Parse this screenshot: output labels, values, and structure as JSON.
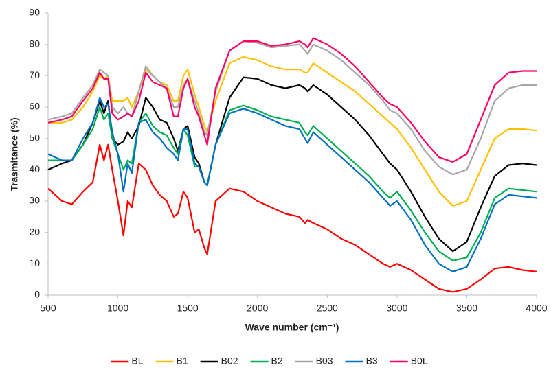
{
  "chart_data": {
    "type": "line",
    "x_label": "Wave number (cm⁻¹)",
    "y_label": "Trasmitance (%)",
    "x": [
      500,
      600,
      670,
      750,
      820,
      870,
      900,
      930,
      960,
      1000,
      1040,
      1070,
      1100,
      1150,
      1200,
      1250,
      1300,
      1350,
      1400,
      1430,
      1470,
      1500,
      1550,
      1580,
      1620,
      1640,
      1700,
      1800,
      1900,
      2000,
      2100,
      2200,
      2300,
      2340,
      2360,
      2400,
      2500,
      2600,
      2700,
      2800,
      2900,
      2950,
      3000,
      3100,
      3200,
      3300,
      3400,
      3500,
      3600,
      3700,
      3800,
      3900,
      4000
    ],
    "series": [
      {
        "name": "BL",
        "color": "#ff0000",
        "values": [
          34,
          30,
          29,
          33,
          36,
          48,
          43,
          48,
          40,
          30,
          19,
          30,
          28,
          42,
          40,
          35,
          32,
          30,
          25,
          26,
          33,
          31,
          20,
          21,
          15,
          13,
          30,
          34,
          33,
          30,
          28,
          26,
          25,
          23,
          24,
          23,
          21,
          18,
          16,
          13,
          10,
          9,
          10,
          8,
          5,
          2,
          1,
          2,
          5,
          8.5,
          9,
          8,
          7.5
        ]
      },
      {
        "name": "B1",
        "color": "#ffc000",
        "values": [
          55,
          55,
          56,
          60,
          65,
          70,
          69,
          70,
          62,
          62,
          62,
          63,
          60,
          65,
          72,
          70,
          68,
          67,
          62,
          62,
          70,
          72,
          64,
          60,
          54,
          52,
          62,
          74,
          76,
          75,
          73,
          72,
          72,
          71,
          71,
          74,
          71,
          68,
          65,
          61,
          57,
          55,
          53,
          47,
          40,
          33,
          28.5,
          30,
          40,
          50,
          53,
          53,
          52.5
        ]
      },
      {
        "name": "B02",
        "color": "#000000",
        "values": [
          40,
          42,
          43,
          48,
          55,
          62,
          58,
          62,
          50,
          48,
          49,
          52,
          50,
          54,
          63,
          60,
          56,
          55,
          50,
          46,
          53,
          54,
          44,
          42,
          36,
          35,
          48,
          63,
          69.5,
          69,
          67,
          66,
          67,
          66,
          65,
          67,
          64,
          60,
          56,
          51,
          45,
          42,
          40,
          33,
          25,
          18,
          14,
          17,
          28,
          38,
          41.5,
          42,
          41.5
        ]
      },
      {
        "name": "B2",
        "color": "#00b050",
        "values": [
          43,
          43,
          43,
          48,
          53,
          60,
          56,
          58,
          50,
          45,
          40,
          43,
          42,
          55,
          58,
          54,
          52,
          51,
          47,
          45,
          53,
          51,
          41,
          41,
          36,
          35,
          48,
          59,
          60.5,
          59,
          57,
          56,
          55,
          52,
          51,
          54,
          50,
          46,
          42,
          38,
          33,
          31,
          33,
          27,
          20,
          14,
          11,
          12,
          20,
          31,
          34,
          33.5,
          33
        ]
      },
      {
        "name": "B03",
        "color": "#a6a6a6",
        "values": [
          56,
          57,
          58,
          63,
          67,
          72,
          71,
          70,
          60,
          58,
          60,
          58,
          57,
          65,
          73,
          70,
          68,
          66,
          60,
          60,
          67,
          69,
          62,
          58,
          52,
          51,
          65,
          78,
          81,
          80.5,
          79,
          79.5,
          80,
          78,
          77,
          80,
          78,
          75,
          71,
          67,
          62,
          59,
          58,
          53,
          46,
          41,
          38.5,
          40,
          50,
          62,
          66,
          67,
          67
        ]
      },
      {
        "name": "B3",
        "color": "#0070c0",
        "values": [
          45,
          43,
          43,
          50,
          55,
          63,
          60,
          61,
          52,
          45,
          33,
          42,
          39,
          55,
          56,
          52,
          50,
          47,
          45,
          43,
          53,
          53,
          42,
          41,
          36,
          35,
          48,
          58,
          59.5,
          58,
          56,
          54,
          53,
          50,
          48.5,
          52,
          48,
          44,
          40,
          36,
          31,
          28.5,
          30,
          24,
          16,
          10,
          7.5,
          9,
          18,
          29,
          32,
          31.5,
          31
        ]
      },
      {
        "name": "B0L",
        "color": "#ff0066",
        "values": [
          55,
          56,
          57,
          62,
          66,
          71,
          69,
          69,
          58,
          56,
          57,
          58,
          57,
          62,
          71,
          68,
          67,
          66,
          57,
          57,
          66,
          69,
          60,
          57,
          51,
          48,
          66,
          78,
          81,
          81,
          79.5,
          80,
          81,
          80,
          79,
          82,
          80,
          77,
          73,
          68,
          63,
          61,
          60,
          55,
          49,
          44,
          42.5,
          45,
          56,
          67,
          71,
          71.5,
          71.5
        ]
      }
    ],
    "xlim": [
      500,
      4000
    ],
    "xticks": [
      500,
      1000,
      1500,
      2000,
      2500,
      3000,
      3500,
      4000
    ],
    "ylim": [
      0,
      90
    ],
    "yticks": [
      0,
      10,
      20,
      30,
      40,
      50,
      60,
      70,
      80,
      90
    ],
    "grid": false,
    "legend": "bottom"
  }
}
